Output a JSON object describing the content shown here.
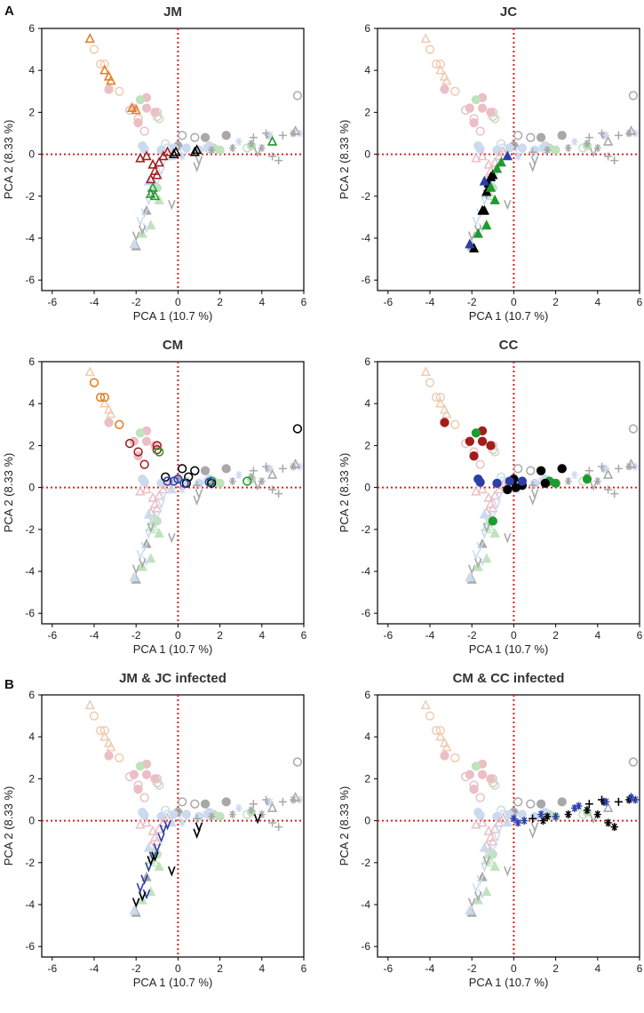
{
  "panel_labels": [
    "A",
    "B"
  ],
  "colors": {
    "dark_red": "#a31d1d",
    "orange": "#e67e22",
    "green": "#1e9b2e",
    "blue": "#2b3fa8",
    "black": "#000000",
    "ghost_pink": "#e8b4bc",
    "ghost_peach": "#ecc4a4",
    "ghost_green": "#b4dfb0",
    "ghost_blue": "#c3d4ea",
    "ghost_gray": "#9a9a9a",
    "axis_line": "#000000",
    "zero_line": "#e02020"
  },
  "chart_data": [
    {
      "type": "scatter",
      "title": "JM",
      "xlabel": "PCA 1 (10.7 %)",
      "ylabel": "PCA 2 (8.33 %)",
      "xlim": [
        -6.5,
        6
      ],
      "ylim": [
        -6.5,
        6
      ],
      "xticks": [
        -6,
        -4,
        -2,
        0,
        2,
        4,
        6
      ],
      "yticks": [
        -6,
        -4,
        -2,
        0,
        2,
        4,
        6
      ],
      "series": [
        {
          "name": "orange triangles",
          "marker": "tri-open",
          "color": "#e67e22",
          "points": [
            [
              -4.2,
              5.5
            ],
            [
              -3.5,
              4.0
            ],
            [
              -3.3,
              3.7
            ],
            [
              -3.2,
              3.5
            ],
            [
              -2.0,
              2.1
            ],
            [
              -2.2,
              2.2
            ]
          ]
        },
        {
          "name": "dark red triangles",
          "marker": "tri-open",
          "color": "#a31d1d",
          "points": [
            [
              -1.8,
              -0.2
            ],
            [
              -1.5,
              -0.1
            ],
            [
              -1.2,
              -0.5
            ],
            [
              -1.1,
              -0.8
            ],
            [
              -1.3,
              -1.2
            ],
            [
              -1.0,
              -1.0
            ],
            [
              -0.9,
              -0.4
            ],
            [
              -0.7,
              -0.1
            ],
            [
              -0.5,
              0.1
            ]
          ]
        },
        {
          "name": "green triangles",
          "marker": "tri-open",
          "color": "#1e9b2e",
          "points": [
            [
              -1.2,
              -1.6
            ],
            [
              -1.1,
              -2.0
            ],
            [
              -1.3,
              -1.9
            ],
            [
              4.5,
              0.6
            ]
          ]
        },
        {
          "name": "black triangles",
          "marker": "tri-open",
          "color": "#000000",
          "points": [
            [
              -0.1,
              0.1
            ],
            [
              0.9,
              0.2
            ],
            [
              0.8,
              0.1
            ],
            [
              -0.2,
              0.0
            ]
          ]
        }
      ]
    },
    {
      "type": "scatter",
      "title": "JC",
      "xlabel": "PCA 1 (10.7 %)",
      "ylabel": "PCA 2 (8.33 %)",
      "xlim": [
        -6.5,
        6
      ],
      "ylim": [
        -6.5,
        6
      ],
      "xticks": [
        -6,
        -4,
        -2,
        0,
        2,
        4,
        6
      ],
      "yticks": [
        -6,
        -4,
        -2,
        0,
        2,
        4,
        6
      ],
      "series": [
        {
          "name": "black filled triangles",
          "marker": "tri-fill",
          "color": "#000000",
          "points": [
            [
              -1.5,
              -2.7
            ],
            [
              -1.4,
              -2.7
            ],
            [
              -1.3,
              -1.8
            ],
            [
              -1.2,
              -1.4
            ],
            [
              -1.1,
              -1.1
            ],
            [
              -1.0,
              -1.0
            ],
            [
              -1.9,
              -4.5
            ]
          ]
        },
        {
          "name": "green filled triangles",
          "marker": "tri-fill",
          "color": "#1e9b2e",
          "points": [
            [
              -1.7,
              -3.8
            ],
            [
              -1.3,
              -3.4
            ],
            [
              -0.8,
              -0.7
            ],
            [
              -0.6,
              -0.4
            ],
            [
              -0.9,
              -2.2
            ],
            [
              -1.1,
              -1.6
            ]
          ]
        },
        {
          "name": "blue filled triangles",
          "marker": "tri-fill",
          "color": "#2b3fa8",
          "points": [
            [
              -2.1,
              -4.3
            ],
            [
              -0.3,
              -0.1
            ],
            [
              -1.4,
              -1.3
            ]
          ]
        }
      ]
    },
    {
      "type": "scatter",
      "title": "CM",
      "xlabel": "PCA 1 (10.7 %)",
      "ylabel": "PCA 2 (8.33 %)",
      "xlim": [
        -6.5,
        6
      ],
      "ylim": [
        -6.5,
        6
      ],
      "xticks": [
        -6,
        -4,
        -2,
        0,
        2,
        4,
        6
      ],
      "yticks": [
        -6,
        -4,
        -2,
        0,
        2,
        4,
        6
      ],
      "series": [
        {
          "name": "orange circles",
          "marker": "circ-open",
          "color": "#e67e22",
          "points": [
            [
              -4.0,
              5.0
            ],
            [
              -3.7,
              4.3
            ],
            [
              -3.5,
              4.3
            ],
            [
              -2.8,
              3.0
            ]
          ]
        },
        {
          "name": "dark red circles",
          "marker": "circ-open",
          "color": "#a31d1d",
          "points": [
            [
              -2.3,
              2.1
            ],
            [
              -1.9,
              1.7
            ],
            [
              -1.6,
              1.1
            ],
            [
              -1.0,
              2.0
            ],
            [
              -1.0,
              1.8
            ]
          ]
        },
        {
          "name": "green circles",
          "marker": "circ-open",
          "color": "#1e9b2e",
          "points": [
            [
              -0.9,
              1.7
            ],
            [
              1.6,
              0.3
            ],
            [
              3.3,
              0.3
            ]
          ]
        },
        {
          "name": "black circles",
          "marker": "circ-open",
          "color": "#000000",
          "points": [
            [
              -0.6,
              0.5
            ],
            [
              0.2,
              0.9
            ],
            [
              0.5,
              0.5
            ],
            [
              0.8,
              0.8
            ],
            [
              5.7,
              2.8
            ],
            [
              0.4,
              0.2
            ],
            [
              1.6,
              0.2
            ]
          ]
        },
        {
          "name": "blue circles",
          "marker": "circ-open",
          "color": "#2b3fa8",
          "points": [
            [
              -0.2,
              0.3
            ],
            [
              -0.5,
              0.3
            ],
            [
              0.3,
              0.2
            ],
            [
              0.0,
              0.4
            ],
            [
              1.5,
              0.25
            ]
          ]
        }
      ]
    },
    {
      "type": "scatter",
      "title": "CC",
      "xlabel": "PCA 1 (10.7 %)",
      "ylabel": "PCA 2 (8.33 %)",
      "xlim": [
        -6.5,
        6
      ],
      "ylim": [
        -6.5,
        6
      ],
      "xticks": [
        -6,
        -4,
        -2,
        0,
        2,
        4,
        6
      ],
      "yticks": [
        -6,
        -4,
        -2,
        0,
        2,
        4,
        6
      ],
      "series": [
        {
          "name": "dark red dots",
          "marker": "circ-fill",
          "color": "#a31d1d",
          "points": [
            [
              -3.3,
              3.1
            ],
            [
              -2.1,
              2.2
            ],
            [
              -1.5,
              2.2
            ],
            [
              -1.5,
              2.7
            ],
            [
              -1.1,
              2.0
            ],
            [
              -1.9,
              1.5
            ]
          ]
        },
        {
          "name": "green dots",
          "marker": "circ-fill",
          "color": "#1e9b2e",
          "points": [
            [
              -1.8,
              2.6
            ],
            [
              -1.0,
              -1.6
            ],
            [
              1.7,
              0.3
            ],
            [
              2.0,
              0.2
            ],
            [
              3.5,
              0.4
            ]
          ]
        },
        {
          "name": "black dots",
          "marker": "circ-fill",
          "color": "#000000",
          "points": [
            [
              0.0,
              0.4
            ],
            [
              0.4,
              0.1
            ],
            [
              1.3,
              0.8
            ],
            [
              1.5,
              0.2
            ],
            [
              2.3,
              0.9
            ],
            [
              -0.3,
              -0.1
            ],
            [
              0.1,
              0.0
            ]
          ]
        },
        {
          "name": "blue dots",
          "marker": "circ-fill",
          "color": "#2b3fa8",
          "points": [
            [
              -1.7,
              0.4
            ],
            [
              -1.6,
              0.25
            ],
            [
              -0.8,
              0.2
            ],
            [
              -0.2,
              0.3
            ],
            [
              0.4,
              0.3
            ]
          ]
        }
      ]
    },
    {
      "type": "scatter",
      "title": "JM & JC infected",
      "xlabel": "PCA 1 (10.7 %)",
      "ylabel": "PCA 2 (8.33 %)",
      "xlim": [
        -6.5,
        6
      ],
      "ylim": [
        -6.5,
        6
      ],
      "xticks": [
        -6,
        -4,
        -2,
        0,
        2,
        4,
        6
      ],
      "yticks": [
        -6,
        -4,
        -2,
        0,
        2,
        4,
        6
      ],
      "series": [
        {
          "name": "blue carets",
          "marker": "vee",
          "color": "#2b3fa8",
          "points": [
            [
              -1.8,
              -3.2
            ],
            [
              -1.6,
              -2.8
            ],
            [
              -1.4,
              -2.2
            ],
            [
              -1.2,
              -1.7
            ],
            [
              -1.0,
              -1.3
            ],
            [
              -0.8,
              -0.8
            ],
            [
              -0.7,
              -0.4
            ],
            [
              -0.5,
              -0.2
            ],
            [
              -1.5,
              -3.5
            ]
          ]
        },
        {
          "name": "black carets",
          "marker": "vee",
          "color": "#000000",
          "points": [
            [
              -2.0,
              -3.9
            ],
            [
              -1.7,
              -3.6
            ],
            [
              -1.3,
              -1.9
            ],
            [
              -1.1,
              -1.7
            ],
            [
              0.9,
              -0.6
            ],
            [
              1.0,
              -0.3
            ],
            [
              3.8,
              0.1
            ],
            [
              -0.3,
              -2.4
            ]
          ]
        }
      ]
    },
    {
      "type": "scatter",
      "title": "CM &  CC  infected",
      "xlabel": "PCA 1 (10.7 %)",
      "ylabel": "PCA 2 (8.33 %)",
      "xlim": [
        -6.5,
        6
      ],
      "ylim": [
        -6.5,
        6
      ],
      "xticks": [
        -6,
        -4,
        -2,
        0,
        2,
        4,
        6
      ],
      "yticks": [
        -6,
        -4,
        -2,
        0,
        2,
        4,
        6
      ],
      "series": [
        {
          "name": "black stars",
          "marker": "star",
          "color": "#000000",
          "points": [
            [
              1.6,
              0.2
            ],
            [
              2.6,
              0.3
            ],
            [
              3.5,
              0.5
            ],
            [
              4.0,
              0.3
            ],
            [
              4.3,
              0.9
            ],
            [
              4.5,
              -0.1
            ],
            [
              4.8,
              -0.3
            ],
            [
              5.5,
              1.0
            ],
            [
              1.4,
              0.0
            ]
          ]
        },
        {
          "name": "black crosses",
          "marker": "plus",
          "color": "#000000",
          "points": [
            [
              0.9,
              0.1
            ],
            [
              3.6,
              0.8
            ],
            [
              4.2,
              1.0
            ],
            [
              5.0,
              0.9
            ]
          ]
        },
        {
          "name": "blue stars",
          "marker": "star",
          "color": "#2b3fa8",
          "points": [
            [
              0.2,
              -0.1
            ],
            [
              0.5,
              0.0
            ],
            [
              1.3,
              0.3
            ],
            [
              2.0,
              0.2
            ],
            [
              2.9,
              0.6
            ],
            [
              3.1,
              0.7
            ],
            [
              4.4,
              0.9
            ],
            [
              5.6,
              1.1
            ],
            [
              5.8,
              1.0
            ],
            [
              0.0,
              0.1
            ]
          ]
        }
      ]
    }
  ]
}
